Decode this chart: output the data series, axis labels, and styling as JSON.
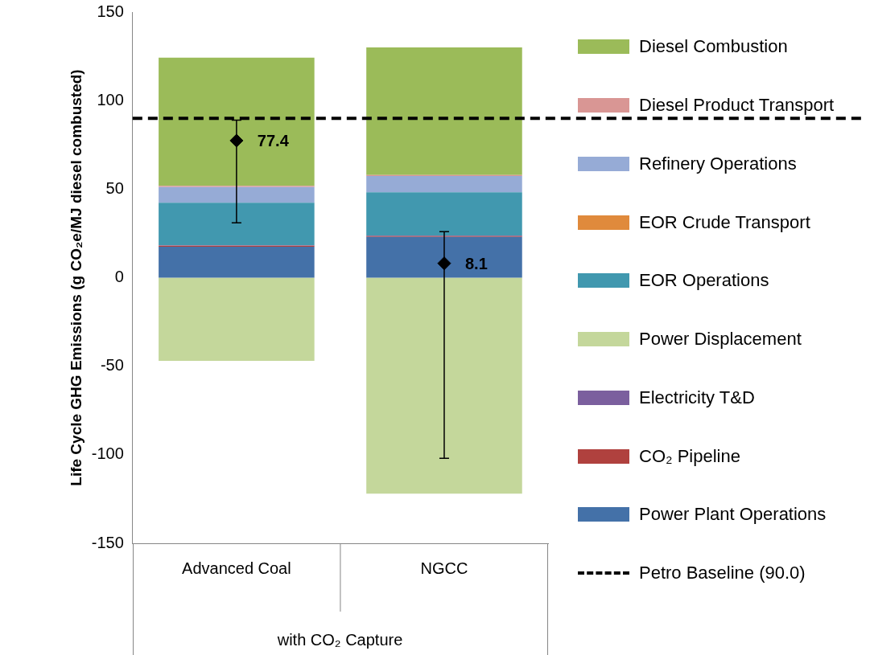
{
  "chart_data": {
    "type": "bar",
    "stacked": true,
    "ylabel": "Life Cycle GHG Emissions (g CO₂e/MJ diesel combusted)",
    "categories": [
      "Advanced Coal",
      "NGCC"
    ],
    "ylim": [
      -150,
      150
    ],
    "yticks": [
      -150,
      -100,
      -50,
      0,
      50,
      100,
      150
    ],
    "grid": false,
    "legend": "right",
    "series": [
      {
        "name": "Power Plant Operations",
        "color": "#4471a8",
        "values": [
          17.5,
          23
        ]
      },
      {
        "name": "CO₂ Pipeline",
        "color": "#b0413e",
        "values": [
          0.5,
          0.5
        ]
      },
      {
        "name": "Electricity T&D",
        "color": "#7b5f9e",
        "values": [
          0.3,
          0.3
        ]
      },
      {
        "name": "Power Displacement",
        "color": "#c4d79b",
        "values": [
          -47,
          -122
        ]
      },
      {
        "name": "EOR Operations",
        "color": "#4198af",
        "values": [
          24,
          24.4
        ]
      },
      {
        "name": "EOR Crude Transport",
        "color": "#e08a3c",
        "values": [
          null,
          null
        ]
      },
      {
        "name": "Refinery Operations",
        "color": "#96abd6",
        "values": [
          8.9,
          9.2
        ]
      },
      {
        "name": "Diesel Product Transport",
        "color": "#d99694",
        "values": [
          0.6,
          0.6
        ]
      },
      {
        "name": "Diesel Combustion",
        "color": "#9bbb59",
        "values": [
          72.4,
          72
        ]
      },
      {
        "type": "scatter",
        "color": "#000000",
        "marker": "diamond",
        "values": [
          77.4,
          8.1
        ],
        "errors": [
          [
            31,
            89
          ],
          [
            -102,
            26
          ]
        ],
        "data_labels": true
      }
    ],
    "ref_lines": [
      {
        "axis": "y",
        "value": 90,
        "label": "Petro Baseline (90.0)",
        "color": "#000000",
        "line_style": "dashed"
      }
    ],
    "annotations": [
      "with CO₂ Capture"
    ]
  }
}
